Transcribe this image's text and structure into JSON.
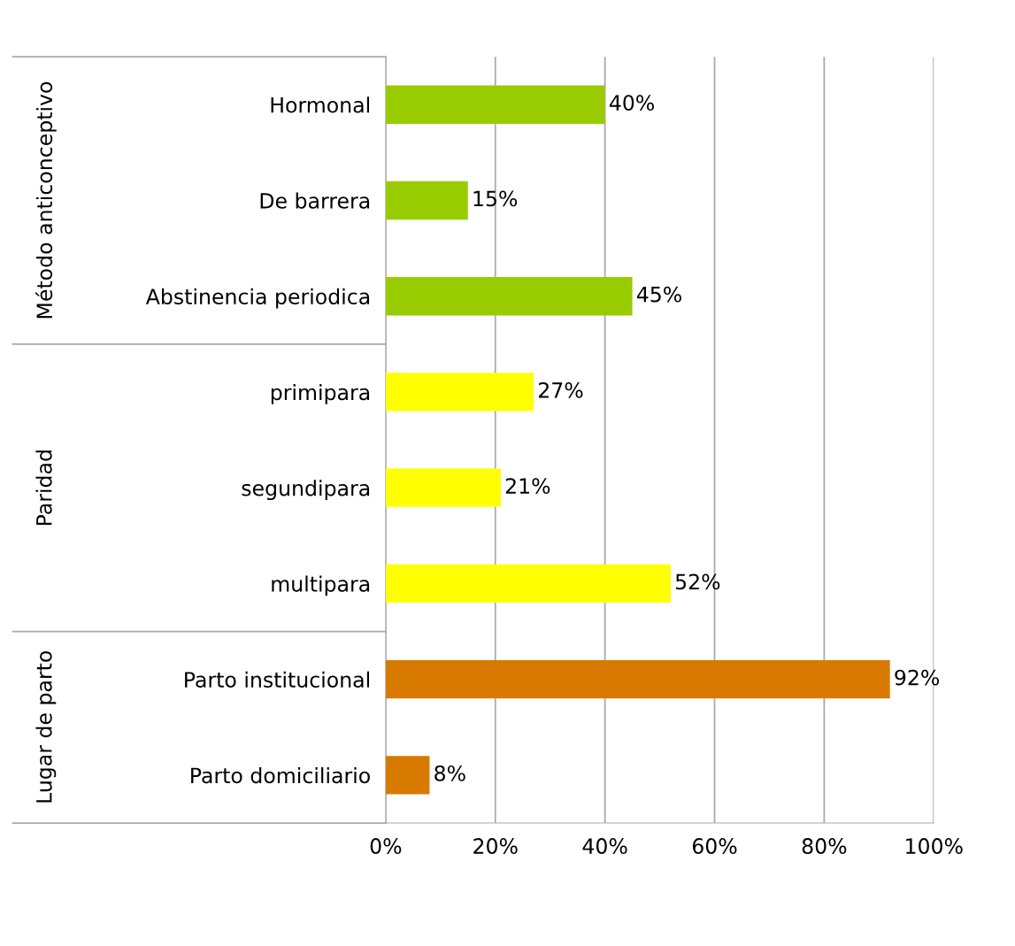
{
  "chart_data": {
    "type": "bar",
    "orientation": "horizontal",
    "categories": [
      "Hormonal",
      "De barrera",
      "Abstinencia periodica",
      "primipara",
      "segundipara",
      "multipara",
      "Parto institucional",
      "Parto domiciliario"
    ],
    "values": [
      40,
      15,
      45,
      27,
      21,
      52,
      92,
      8
    ],
    "colors": [
      "#99cc00",
      "#99cc00",
      "#99cc00",
      "#ffff00",
      "#ffff00",
      "#ffff00",
      "#d97a00",
      "#d97a00"
    ],
    "value_labels": [
      "40%",
      "15%",
      "45%",
      "27%",
      "21%",
      "52%",
      "92%",
      "8%"
    ],
    "xlim": [
      0,
      100
    ],
    "xticks": [
      {
        "value": 0,
        "label": "0%"
      },
      {
        "value": 20,
        "label": "20%"
      },
      {
        "value": 40,
        "label": "40%"
      },
      {
        "value": 60,
        "label": "60%"
      },
      {
        "value": 80,
        "label": "80%"
      },
      {
        "value": 100,
        "label": "100%"
      }
    ],
    "grid": "x",
    "annotations": [
      "Método anticonceptivo",
      "Paridad",
      "Lugar de parto"
    ]
  }
}
